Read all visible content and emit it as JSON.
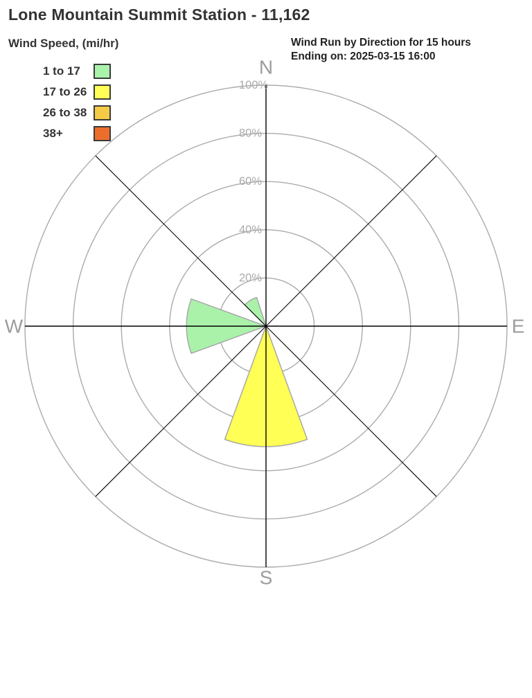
{
  "title": "Lone Mountain Summit Station - 11,162",
  "subtitle": {
    "line1": "Wind Run by Direction for 15 hours",
    "line2": "Ending on: 2025-03-15 16:00"
  },
  "legend": {
    "title": "Wind Speed, (mi/hr)",
    "items": [
      {
        "label": "1 to 17",
        "color": "#aaf2aa"
      },
      {
        "label": "17 to 26",
        "color": "#ffff55"
      },
      {
        "label": "26 to 38",
        "color": "#f5ca47"
      },
      {
        "label": "38+",
        "color": "#ec6e2d"
      }
    ]
  },
  "chart_data": {
    "type": "wind_rose",
    "title": "Wind Run by Direction for 15 hours Ending on: 2025-03-15 16:00",
    "station": "Lone Mountain Summit Station - 11,162",
    "units": "percent of wind run",
    "ring_ticks_pct": [
      20,
      40,
      60,
      80,
      100
    ],
    "ring_tick_labels": [
      "20%",
      "40%",
      "60%",
      "80%",
      "100%"
    ],
    "direction_labels": [
      {
        "label": "N",
        "angle_deg": 0
      },
      {
        "label": "E",
        "angle_deg": 90
      },
      {
        "label": "S",
        "angle_deg": 180
      },
      {
        "label": "W",
        "angle_deg": 270
      }
    ],
    "speed_bins": [
      {
        "label": "1 to 17",
        "color": "#aaf2aa"
      },
      {
        "label": "17 to 26",
        "color": "#ffff55"
      },
      {
        "label": "26 to 38",
        "color": "#f5ca47"
      },
      {
        "label": "38+",
        "color": "#ec6e2d"
      }
    ],
    "petals": [
      {
        "direction": "NNW",
        "center_deg": 328.5,
        "span_deg": 27,
        "value_pct": 12.5,
        "speed_bin": "1 to 17",
        "color": "#aaf2aa"
      },
      {
        "direction": "W",
        "center_deg": 270,
        "span_deg": 40,
        "value_pct": 33,
        "speed_bin": "1 to 17",
        "color": "#aaf2aa"
      },
      {
        "direction": "S",
        "center_deg": 180,
        "span_deg": 40,
        "value_pct": 50,
        "speed_bin": "17 to 26",
        "color": "#ffff55"
      }
    ],
    "colors": {
      "ring": "#ababab",
      "ring_label": "#ababab",
      "direction_label": "#9c9c9c",
      "axis_line": "#000000",
      "petal_outline": "#a8a8a8"
    }
  }
}
